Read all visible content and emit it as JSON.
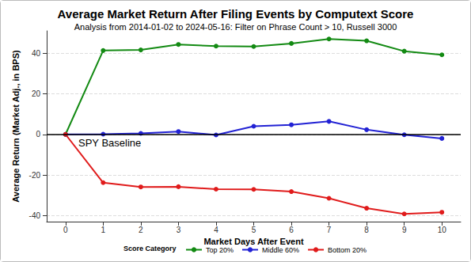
{
  "chart_data": {
    "type": "line",
    "title": "Average Market Return After Filing Events by Computext Score",
    "subtitle": "Analysis from 2014-01-02 to 2024-05-16: Filter on Phrase Count > 10, Russell 3000",
    "x_label": "Market Days After Event",
    "y_label": "Average Return (Market Adj., in BPS)",
    "x": [
      0,
      1,
      2,
      3,
      4,
      5,
      6,
      7,
      8,
      9,
      10
    ],
    "xlim": [
      -0.5,
      10.5
    ],
    "xticks": [
      0,
      1,
      2,
      3,
      4,
      5,
      6,
      7,
      8,
      9,
      10
    ],
    "ylim": [
      -43,
      51
    ],
    "yticks": [
      -40,
      -20,
      0,
      20,
      40
    ],
    "grid": true,
    "legend": "bottom",
    "legend_title": "Score Category",
    "marker": "circle",
    "annotations": [
      {
        "text": "SPY Baseline",
        "y": 0
      }
    ],
    "series": [
      {
        "name": "Top 20%",
        "color": "#138a13",
        "values": [
          0,
          41.3,
          41.6,
          44.3,
          43.5,
          43.3,
          44.8,
          47.0,
          46.1,
          41.0,
          39.2
        ]
      },
      {
        "name": "Middle 60%",
        "color": "#2222d4",
        "values": [
          0,
          0.1,
          0.5,
          1.4,
          -0.3,
          4.0,
          4.7,
          6.4,
          2.3,
          -0.2,
          -2.0
        ]
      },
      {
        "name": "Bottom 20%",
        "color": "#e01b1b",
        "values": [
          0,
          -23.8,
          -25.9,
          -25.8,
          -27.0,
          -27.1,
          -28.2,
          -31.5,
          -36.4,
          -39.2,
          -38.4
        ]
      }
    ]
  }
}
